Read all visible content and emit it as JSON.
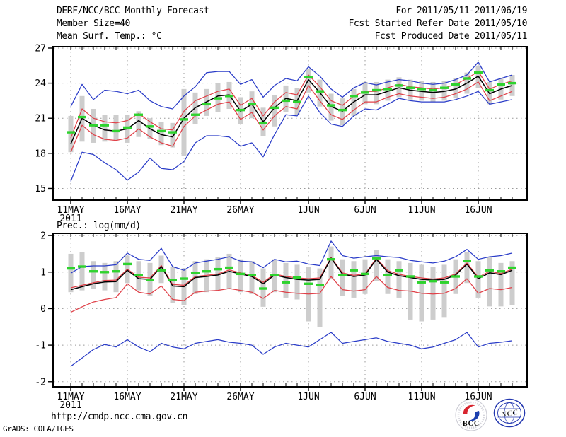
{
  "header": {
    "left_lines": [
      "DERF/NCC/BCC Monthly Forecast",
      "Member Size=40"
    ],
    "right_lines": [
      "For 2011/05/11-2011/06/19",
      "Fcst Started Refer Date 2011/05/10",
      "Fcst Produced Date 2011/05/11"
    ]
  },
  "footer": {
    "url": "http://cmdp.ncc.cma.gov.cn",
    "credit": "GrADS: COLA/IGES"
  },
  "logos": {
    "bcc_label": "BCC",
    "ncc_label": "NCC"
  },
  "colors": {
    "line_blue": "#2a3cc8",
    "line_red": "#e04048",
    "line_green": "#2ed32e",
    "line_black": "#000000",
    "bar_gray": "#cdcdcd",
    "grid_gray": "#999999",
    "logo_blue": "#1d3fae",
    "logo_red": "#d8242e"
  },
  "chart_data": [
    {
      "name": "mean-surface-temperature",
      "type": "line",
      "title": "Mean Surf. Temp.: °C",
      "ylabel": "",
      "grid": true,
      "ylim": [
        14.0,
        27.12
      ],
      "yticks": [
        15,
        18,
        21,
        24,
        27
      ],
      "n_days": 40,
      "dates": [
        "11MAY",
        "12MAY",
        "13MAY",
        "14MAY",
        "15MAY",
        "16MAY",
        "17MAY",
        "18MAY",
        "19MAY",
        "20MAY",
        "21MAY",
        "22MAY",
        "23MAY",
        "24MAY",
        "25MAY",
        "26MAY",
        "27MAY",
        "28MAY",
        "29MAY",
        "30MAY",
        "31MAY",
        "1JUN",
        "2JUN",
        "3JUN",
        "4JUN",
        "5JUN",
        "6JUN",
        "7JUN",
        "8JUN",
        "9JUN",
        "10JUN",
        "11JUN",
        "12JUN",
        "13JUN",
        "14JUN",
        "15JUN",
        "16JUN",
        "17JUN",
        "18JUN",
        "19JUN"
      ],
      "x_ticks": [
        {
          "day": 1,
          "label": "11MAY",
          "sub": "2011"
        },
        {
          "day": 6,
          "label": "16MAY"
        },
        {
          "day": 11,
          "label": "21MAY"
        },
        {
          "day": 16,
          "label": "26MAY"
        },
        {
          "day": 22,
          "label": "1JUN"
        },
        {
          "day": 27,
          "label": "6JUN"
        },
        {
          "day": 32,
          "label": "11JUN"
        },
        {
          "day": 37,
          "label": "16JUN"
        }
      ],
      "series": [
        {
          "name": "blue-upper-line",
          "color": "line_blue",
          "values": [
            22.0,
            23.9,
            22.6,
            23.4,
            23.3,
            23.1,
            23.4,
            22.5,
            22.0,
            21.8,
            22.9,
            23.7,
            24.9,
            25.0,
            25.0,
            23.9,
            24.3,
            22.8,
            23.8,
            24.4,
            24.2,
            25.4,
            24.6,
            23.5,
            22.8,
            23.6,
            24.05,
            23.85,
            24.1,
            24.3,
            24.2,
            24.0,
            23.9,
            24.0,
            24.3,
            24.7,
            25.8,
            24.1,
            24.4,
            24.7
          ]
        },
        {
          "name": "blue-lower-line",
          "color": "line_blue",
          "values": [
            15.6,
            18.1,
            17.9,
            17.2,
            16.6,
            15.7,
            16.4,
            17.6,
            16.7,
            16.6,
            17.3,
            18.9,
            19.5,
            19.5,
            19.4,
            18.6,
            18.9,
            17.7,
            19.6,
            21.3,
            21.2,
            22.9,
            21.5,
            20.5,
            20.3,
            21.2,
            21.8,
            21.7,
            22.2,
            22.7,
            22.5,
            22.4,
            22.4,
            22.4,
            22.6,
            22.9,
            23.3,
            22.2,
            22.4,
            22.6
          ]
        },
        {
          "name": "red-upper-line",
          "color": "line_red",
          "values": [
            19.3,
            21.8,
            21.0,
            20.7,
            20.6,
            20.8,
            21.4,
            20.7,
            20.1,
            20.0,
            21.6,
            22.5,
            22.9,
            23.3,
            23.5,
            22.1,
            22.7,
            21.2,
            22.4,
            23.2,
            23.0,
            24.7,
            23.7,
            22.5,
            22.1,
            22.9,
            23.3,
            23.3,
            23.6,
            23.9,
            23.7,
            23.6,
            23.5,
            23.6,
            23.9,
            24.4,
            25.0,
            23.5,
            23.9,
            24.2
          ]
        },
        {
          "name": "red-lower-line",
          "color": "line_red",
          "values": [
            18.1,
            20.4,
            19.6,
            19.2,
            19.1,
            19.3,
            20.1,
            19.4,
            18.9,
            18.6,
            20.3,
            21.2,
            21.7,
            22.2,
            22.4,
            20.9,
            21.5,
            20.0,
            21.2,
            22.0,
            21.8,
            23.8,
            22.5,
            21.3,
            20.9,
            21.7,
            22.4,
            22.4,
            22.8,
            23.1,
            22.9,
            22.8,
            22.7,
            22.8,
            23.1,
            23.5,
            24.1,
            22.5,
            22.9,
            23.3
          ]
        },
        {
          "name": "black-mean-line",
          "color": "line_black",
          "values": [
            18.8,
            21.0,
            20.4,
            20.0,
            19.9,
            20.1,
            20.8,
            20.1,
            19.6,
            19.4,
            21.0,
            21.9,
            22.4,
            22.9,
            23.0,
            21.6,
            22.2,
            20.7,
            21.9,
            22.7,
            22.5,
            24.3,
            23.2,
            22.0,
            21.6,
            22.4,
            23.0,
            23.0,
            23.3,
            23.6,
            23.4,
            23.3,
            23.2,
            23.3,
            23.5,
            24.0,
            24.6,
            23.1,
            23.5,
            23.8
          ]
        },
        {
          "name": "green-dash-markers",
          "color": "line_green",
          "style": "dash-marker",
          "values": [
            19.8,
            21.1,
            20.4,
            20.4,
            19.9,
            20.2,
            21.3,
            20.3,
            19.9,
            19.8,
            20.9,
            21.3,
            22.2,
            22.7,
            22.9,
            21.7,
            22.2,
            20.6,
            21.9,
            22.5,
            22.4,
            24.5,
            23.3,
            22.1,
            21.7,
            22.9,
            23.2,
            23.4,
            23.5,
            23.8,
            23.6,
            23.5,
            23.4,
            23.6,
            23.9,
            24.4,
            24.9,
            23.4,
            23.9,
            24.0
          ]
        }
      ],
      "bars": {
        "name": "gray-spread-bars",
        "high": [
          21.2,
          22.9,
          21.8,
          21.3,
          21.3,
          21.3,
          21.6,
          21.0,
          20.7,
          20.6,
          23.5,
          23.2,
          23.5,
          24.0,
          24.1,
          22.8,
          23.3,
          21.9,
          23.0,
          23.8,
          23.6,
          25.2,
          24.3,
          23.1,
          22.7,
          23.5,
          24.1,
          24.1,
          24.3,
          24.5,
          24.3,
          24.2,
          24.1,
          24.2,
          24.4,
          24.9,
          25.5,
          24.1,
          24.4,
          24.7
        ],
        "low": [
          18.1,
          19.0,
          18.9,
          19.0,
          19.1,
          18.9,
          19.4,
          19.2,
          18.7,
          18.5,
          17.8,
          20.5,
          21.2,
          21.5,
          21.8,
          20.5,
          21.0,
          19.5,
          20.3,
          21.5,
          21.3,
          23.2,
          22.0,
          20.8,
          20.4,
          21.2,
          22.2,
          22.2,
          22.5,
          22.8,
          22.6,
          22.5,
          22.4,
          22.5,
          22.7,
          23.1,
          23.6,
          22.2,
          22.6,
          22.9
        ]
      }
    },
    {
      "name": "precipitation",
      "type": "line",
      "title": "Prec.: log(mm/d)",
      "ylabel": "",
      "grid": true,
      "ylim": [
        -2.14,
        2.06
      ],
      "yticks": [
        -2,
        -1,
        0,
        1,
        2
      ],
      "n_days": 40,
      "dates": [
        "11MAY",
        "12MAY",
        "13MAY",
        "14MAY",
        "15MAY",
        "16MAY",
        "17MAY",
        "18MAY",
        "19MAY",
        "20MAY",
        "21MAY",
        "22MAY",
        "23MAY",
        "24MAY",
        "25MAY",
        "26MAY",
        "27MAY",
        "28MAY",
        "29MAY",
        "30MAY",
        "31MAY",
        "1JUN",
        "2JUN",
        "3JUN",
        "4JUN",
        "5JUN",
        "6JUN",
        "7JUN",
        "8JUN",
        "9JUN",
        "10JUN",
        "11JUN",
        "12JUN",
        "13JUN",
        "14JUN",
        "15JUN",
        "16JUN",
        "17JUN",
        "18JUN",
        "19JUN"
      ],
      "x_ticks": [
        {
          "day": 1,
          "label": "11MAY",
          "sub": "2011"
        },
        {
          "day": 6,
          "label": "16MAY"
        },
        {
          "day": 11,
          "label": "21MAY"
        },
        {
          "day": 16,
          "label": "26MAY"
        },
        {
          "day": 22,
          "label": "1JUN"
        },
        {
          "day": 27,
          "label": "6JUN"
        },
        {
          "day": 32,
          "label": "11JUN"
        },
        {
          "day": 37,
          "label": "16JUN"
        }
      ],
      "series": [
        {
          "name": "blue-upper-line",
          "color": "line_blue",
          "values": [
            0.97,
            1.15,
            1.17,
            1.17,
            1.2,
            1.52,
            1.35,
            1.32,
            1.65,
            1.15,
            1.05,
            1.25,
            1.3,
            1.35,
            1.42,
            1.3,
            1.28,
            1.12,
            1.35,
            1.28,
            1.3,
            1.22,
            1.18,
            1.85,
            1.45,
            1.38,
            1.42,
            1.45,
            1.42,
            1.4,
            1.32,
            1.28,
            1.25,
            1.3,
            1.42,
            1.62,
            1.35,
            1.42,
            1.45,
            1.52
          ]
        },
        {
          "name": "blue-lower-line",
          "color": "line_blue",
          "values": [
            -1.58,
            -1.35,
            -1.12,
            -0.98,
            -1.05,
            -0.85,
            -1.05,
            -1.18,
            -0.95,
            -1.05,
            -1.1,
            -0.95,
            -0.9,
            -0.85,
            -0.92,
            -0.95,
            -1.0,
            -1.25,
            -1.05,
            -0.95,
            -1.0,
            -1.05,
            -0.85,
            -0.65,
            -0.95,
            -0.9,
            -0.85,
            -0.8,
            -0.9,
            -0.95,
            -1.0,
            -1.1,
            -1.05,
            -0.95,
            -0.85,
            -0.65,
            -1.05,
            -0.95,
            -0.92,
            -0.88
          ]
        },
        {
          "name": "red-upper-line",
          "color": "line_red",
          "values": [
            0.57,
            0.64,
            0.71,
            0.77,
            0.78,
            1.08,
            0.86,
            0.84,
            1.18,
            0.66,
            0.64,
            0.88,
            0.91,
            0.95,
            1.06,
            0.98,
            0.91,
            0.72,
            0.95,
            0.88,
            0.84,
            0.82,
            0.84,
            1.4,
            0.98,
            0.91,
            0.95,
            1.38,
            1.04,
            0.94,
            0.88,
            0.84,
            0.81,
            0.84,
            0.95,
            1.25,
            0.86,
            1.02,
            0.96,
            1.08
          ]
        },
        {
          "name": "red-lower-line",
          "color": "line_red",
          "values": [
            -0.1,
            0.05,
            0.18,
            0.25,
            0.3,
            0.68,
            0.45,
            0.4,
            0.62,
            0.25,
            0.22,
            0.45,
            0.48,
            0.5,
            0.55,
            0.5,
            0.45,
            0.28,
            0.5,
            0.45,
            0.42,
            0.4,
            0.42,
            0.88,
            0.52,
            0.48,
            0.52,
            0.88,
            0.58,
            0.5,
            0.48,
            0.42,
            0.4,
            0.42,
            0.55,
            0.82,
            0.42,
            0.55,
            0.52,
            0.58
          ]
        },
        {
          "name": "black-mean-line",
          "color": "line_black",
          "values": [
            0.52,
            0.6,
            0.68,
            0.73,
            0.74,
            1.05,
            0.82,
            0.8,
            1.15,
            0.62,
            0.6,
            0.85,
            0.88,
            0.92,
            1.02,
            0.95,
            0.88,
            0.68,
            0.92,
            0.85,
            0.8,
            0.78,
            0.8,
            1.38,
            0.95,
            0.88,
            0.92,
            1.35,
            1.0,
            0.9,
            0.85,
            0.8,
            0.78,
            0.8,
            0.92,
            1.22,
            0.82,
            0.98,
            0.93,
            1.05
          ]
        },
        {
          "name": "green-dash-markers",
          "color": "line_green",
          "style": "dash-marker",
          "values": [
            1.1,
            1.15,
            1.02,
            1.0,
            1.02,
            1.22,
            0.92,
            0.78,
            1.05,
            0.78,
            0.82,
            0.98,
            1.02,
            1.08,
            1.12,
            0.95,
            0.92,
            0.55,
            0.92,
            0.72,
            0.85,
            0.68,
            0.65,
            1.35,
            0.92,
            1.05,
            0.95,
            1.38,
            0.92,
            1.05,
            0.88,
            0.72,
            0.75,
            0.72,
            0.88,
            1.3,
            0.88,
            1.05,
            1.02,
            1.12
          ]
        }
      ],
      "bars": {
        "name": "gray-spread-bars",
        "high": [
          1.5,
          1.55,
          1.3,
          1.25,
          1.3,
          1.45,
          1.3,
          1.25,
          1.45,
          1.15,
          1.1,
          1.3,
          1.35,
          1.4,
          1.5,
          1.35,
          1.3,
          1.1,
          1.35,
          1.25,
          1.2,
          1.15,
          1.1,
          1.7,
          1.35,
          1.3,
          1.35,
          1.6,
          1.35,
          1.3,
          1.25,
          1.2,
          1.15,
          1.2,
          1.35,
          1.55,
          1.3,
          1.4,
          1.25,
          1.3
        ],
        "low": [
          0.45,
          0.5,
          0.55,
          0.5,
          0.45,
          0.7,
          0.5,
          0.35,
          0.7,
          0.15,
          0.1,
          0.4,
          0.45,
          0.5,
          0.55,
          0.45,
          0.4,
          0.05,
          0.45,
          0.3,
          0.25,
          -0.35,
          -0.5,
          0.8,
          0.35,
          0.3,
          0.4,
          0.75,
          0.4,
          0.3,
          -0.3,
          -0.35,
          -0.3,
          -0.25,
          0.4,
          0.7,
          0.3,
          0.06,
          0.06,
          0.1
        ]
      }
    }
  ]
}
